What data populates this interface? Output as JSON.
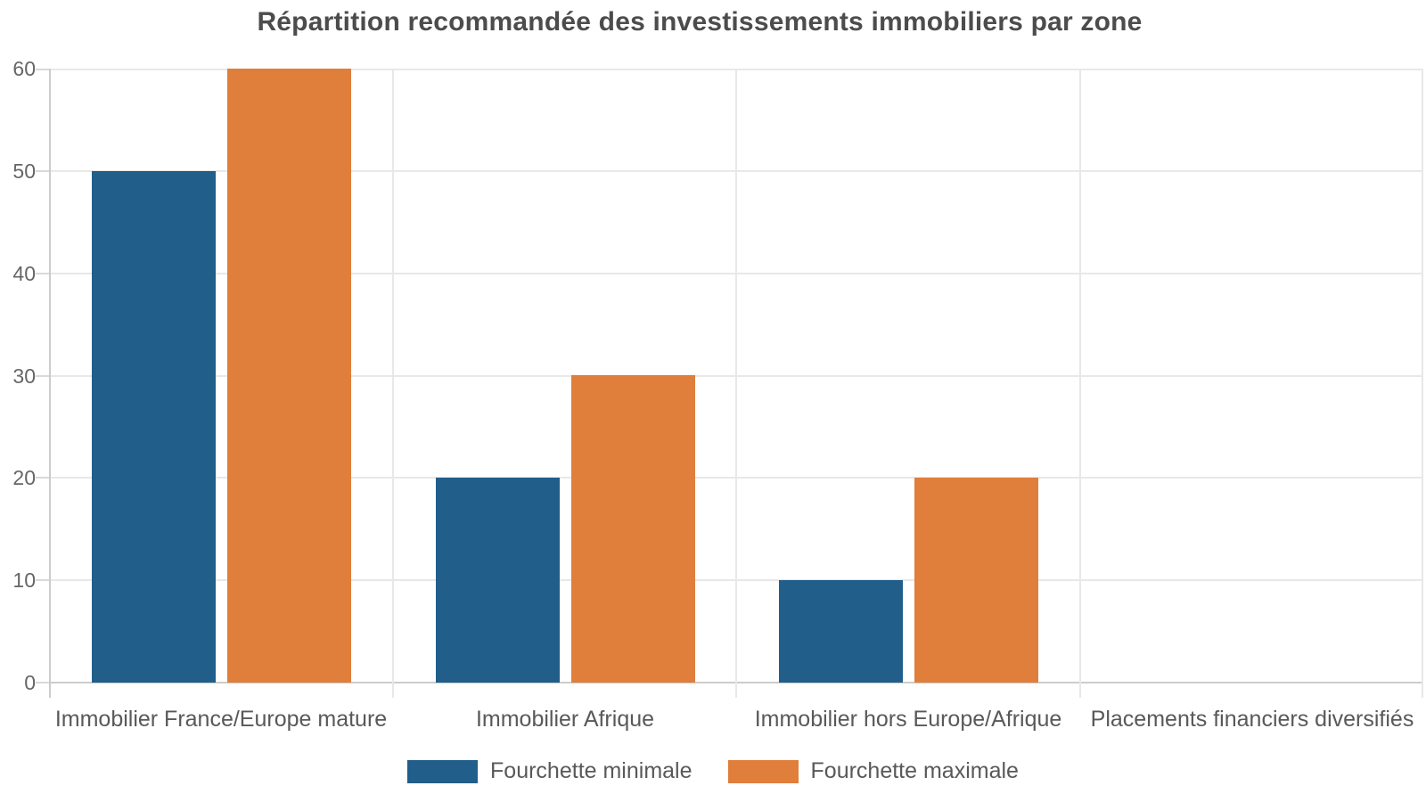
{
  "chart_data": {
    "type": "bar",
    "title": "Répartition recommandée des investissements immobiliers par zone",
    "categories": [
      "Immobilier France/Europe mature",
      "Immobilier Afrique",
      "Immobilier hors Europe/Afrique",
      "Placements financiers diversifiés"
    ],
    "series": [
      {
        "name": "Fourchette minimale",
        "color": "#215E8A",
        "values": [
          50,
          20,
          10,
          0
        ]
      },
      {
        "name": "Fourchette maximale",
        "color": "#E07E3C",
        "values": [
          60,
          30,
          20,
          0
        ]
      }
    ],
    "ylim": [
      0,
      60
    ],
    "yticks": [
      0,
      10,
      20,
      30,
      40,
      50,
      60
    ],
    "grid": true,
    "grid_color": "#e8e8e8",
    "axis_color": "#cccccc",
    "title_color": "#4c4c4c",
    "tick_label_color": "#666666",
    "category_label_color": "#595959",
    "legend_position": "bottom",
    "xlabel": "",
    "ylabel": ""
  }
}
